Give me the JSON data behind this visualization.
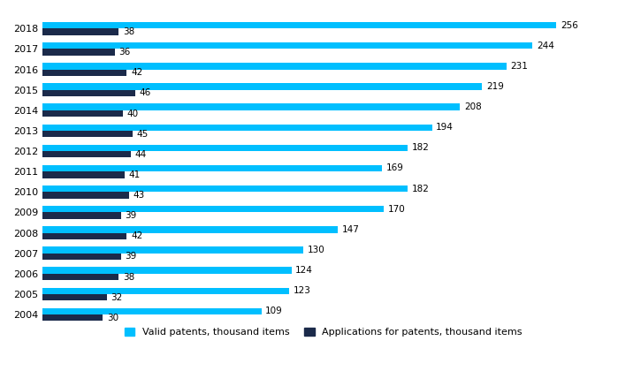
{
  "years": [
    2018,
    2017,
    2016,
    2015,
    2014,
    2013,
    2012,
    2011,
    2010,
    2009,
    2008,
    2007,
    2006,
    2005,
    2004
  ],
  "valid_patents": [
    256,
    244,
    231,
    219,
    208,
    194,
    182,
    169,
    182,
    170,
    147,
    130,
    124,
    123,
    109
  ],
  "applications": [
    38,
    36,
    42,
    46,
    40,
    45,
    44,
    41,
    43,
    39,
    42,
    39,
    38,
    32,
    30
  ],
  "valid_color": "#00BFFF",
  "app_color": "#1B2A4A",
  "background_color": "#FFFFFF",
  "legend_valid": "Valid patents, thousand items",
  "legend_app": "Applications for patents, thousand items",
  "bar_height": 0.32,
  "xlim": [
    0,
    280
  ],
  "label_fontsize": 7.5,
  "tick_fontsize": 8.0,
  "legend_fontsize": 8.0
}
